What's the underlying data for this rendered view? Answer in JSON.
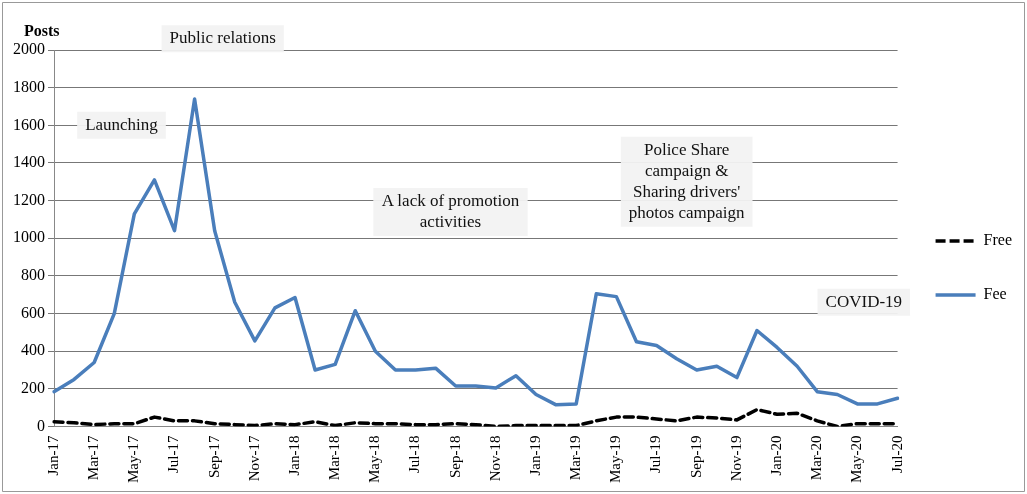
{
  "chart_data": {
    "type": "line",
    "ylabel": "Posts",
    "categories": [
      "Jan-17",
      null,
      "Mar-17",
      null,
      "May-17",
      null,
      "Jul-17",
      null,
      "Sep-17",
      null,
      "Nov-17",
      null,
      "Jan-18",
      null,
      "Mar-18",
      null,
      "May-18",
      null,
      "Jul-18",
      null,
      "Sep-18",
      null,
      "Nov-18",
      null,
      "Jan-19",
      null,
      "Mar-19",
      null,
      "May-19",
      null,
      "Jul-19",
      null,
      "Sep-19",
      null,
      "Nov-19",
      null,
      "Jan-20",
      null,
      "Mar-20",
      null,
      "May-20",
      null,
      "Jul-20"
    ],
    "series": [
      {
        "name": "Free",
        "color": "#000000",
        "line_style": "dashed",
        "values": [
          25,
          20,
          10,
          15,
          15,
          50,
          30,
          30,
          15,
          10,
          5,
          15,
          10,
          25,
          5,
          20,
          15,
          15,
          10,
          10,
          15,
          10,
          0,
          5,
          5,
          5,
          5,
          30,
          50,
          50,
          40,
          30,
          50,
          45,
          35,
          90,
          65,
          70,
          30,
          0,
          15,
          15,
          15
        ]
      },
      {
        "name": "Fee",
        "color": "#4a7ebb",
        "line_style": "solid",
        "values": [
          185,
          250,
          340,
          600,
          1130,
          1310,
          1040,
          1740,
          1040,
          660,
          455,
          630,
          685,
          300,
          330,
          615,
          400,
          300,
          300,
          310,
          215,
          215,
          205,
          270,
          170,
          115,
          120,
          705,
          690,
          450,
          430,
          360,
          300,
          320,
          260,
          510,
          420,
          320,
          185,
          170,
          120,
          120,
          150
        ]
      }
    ],
    "ylim": [
      0,
      2000
    ],
    "yticks": [
      0,
      200,
      400,
      600,
      800,
      1000,
      1200,
      1400,
      1600,
      1800,
      2000
    ],
    "grid": "y",
    "legend": "right",
    "marker": "none",
    "annotations": [
      "Public relations",
      "Launching",
      "A lack of promotion\nactivities",
      "Police Share\ncampaign &\nSharing drivers'\nphotos campaign",
      "COVID-19"
    ]
  }
}
